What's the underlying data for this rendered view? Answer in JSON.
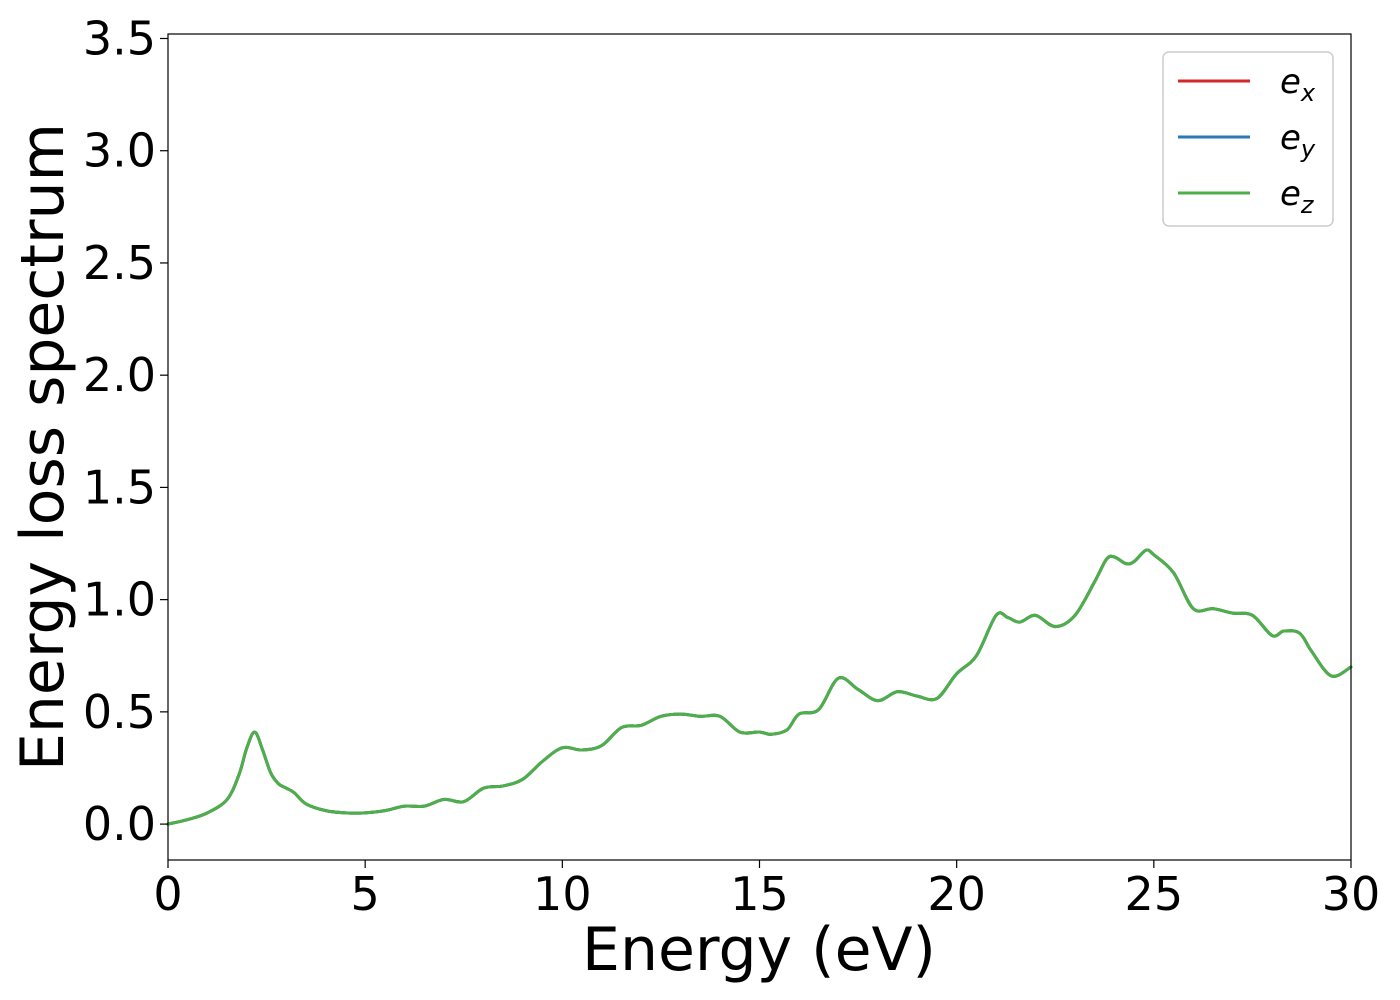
{
  "chart_data": {
    "type": "line",
    "title": "",
    "xlabel": "Energy (eV)",
    "ylabel": "Energy loss spectrum",
    "xlim": [
      0,
      30
    ],
    "ylim": [
      -0.16,
      3.52
    ],
    "xticks": [
      0,
      5,
      10,
      15,
      20,
      25,
      30
    ],
    "yticks": [
      0.0,
      0.5,
      1.0,
      1.5,
      2.0,
      2.5,
      3.0,
      3.5
    ],
    "xtick_labels": [
      "0",
      "5",
      "10",
      "15",
      "20",
      "25",
      "30"
    ],
    "ytick_labels": [
      "0.0",
      "0.5",
      "1.0",
      "1.5",
      "2.0",
      "2.5",
      "3.0",
      "3.5"
    ],
    "grid": false,
    "legend_position": "top-right",
    "x": [
      0,
      0.5,
      1.0,
      1.5,
      1.8,
      2.0,
      2.2,
      2.4,
      2.6,
      2.8,
      3.0,
      3.2,
      3.5,
      4.0,
      4.5,
      5.0,
      5.5,
      6.0,
      6.5,
      7.0,
      7.5,
      8.0,
      8.5,
      9.0,
      9.5,
      10.0,
      10.5,
      11.0,
      11.5,
      12.0,
      12.5,
      13.0,
      13.5,
      14.0,
      14.5,
      15.0,
      15.3,
      15.7,
      16.0,
      16.5,
      17.0,
      17.5,
      18.0,
      18.5,
      19.0,
      19.5,
      20.0,
      20.5,
      21.0,
      21.3,
      21.6,
      22.0,
      22.5,
      23.0,
      23.5,
      23.8,
      24.0,
      24.3,
      24.5,
      24.8,
      25.0,
      25.5,
      26.0,
      26.5,
      27.0,
      27.5,
      28.0,
      28.3,
      28.7,
      29.0,
      29.5,
      30.0
    ],
    "series": [
      {
        "name": "e_x",
        "sub": "x",
        "color": "#d62728",
        "values": [
          0.0,
          0.02,
          0.05,
          0.11,
          0.22,
          0.34,
          0.41,
          0.33,
          0.23,
          0.18,
          0.16,
          0.14,
          0.09,
          0.06,
          0.05,
          0.05,
          0.06,
          0.08,
          0.08,
          0.11,
          0.1,
          0.16,
          0.17,
          0.2,
          0.28,
          0.34,
          0.33,
          0.35,
          0.43,
          0.44,
          0.48,
          0.49,
          0.48,
          0.48,
          0.41,
          0.41,
          0.4,
          0.42,
          0.49,
          0.51,
          0.65,
          0.6,
          0.55,
          0.59,
          0.57,
          0.56,
          0.67,
          0.75,
          0.93,
          0.92,
          0.9,
          0.93,
          0.88,
          0.93,
          1.08,
          1.18,
          1.19,
          1.16,
          1.17,
          1.22,
          1.2,
          1.12,
          0.96,
          0.96,
          0.94,
          0.93,
          0.84,
          0.86,
          0.85,
          0.77,
          0.66,
          0.7
        ]
      },
      {
        "name": "e_y",
        "sub": "y",
        "color": "#2a7ab5",
        "values": [
          0.0,
          0.02,
          0.05,
          0.11,
          0.22,
          0.34,
          0.41,
          0.33,
          0.23,
          0.18,
          0.16,
          0.14,
          0.09,
          0.06,
          0.05,
          0.05,
          0.06,
          0.08,
          0.08,
          0.11,
          0.1,
          0.16,
          0.17,
          0.2,
          0.28,
          0.34,
          0.33,
          0.35,
          0.43,
          0.44,
          0.48,
          0.49,
          0.48,
          0.48,
          0.41,
          0.41,
          0.4,
          0.42,
          0.49,
          0.51,
          0.65,
          0.6,
          0.55,
          0.59,
          0.57,
          0.56,
          0.67,
          0.75,
          0.93,
          0.92,
          0.9,
          0.93,
          0.88,
          0.93,
          1.08,
          1.18,
          1.19,
          1.16,
          1.17,
          1.22,
          1.2,
          1.12,
          0.96,
          0.96,
          0.94,
          0.93,
          0.84,
          0.86,
          0.85,
          0.77,
          0.66,
          0.7
        ]
      },
      {
        "name": "e_z",
        "sub": "z",
        "color": "#4daf4a",
        "values": [
          0.0,
          0.02,
          0.05,
          0.11,
          0.22,
          0.34,
          0.41,
          0.33,
          0.23,
          0.18,
          0.16,
          0.14,
          0.09,
          0.06,
          0.05,
          0.05,
          0.06,
          0.08,
          0.08,
          0.11,
          0.1,
          0.16,
          0.17,
          0.2,
          0.28,
          0.34,
          0.33,
          0.35,
          0.43,
          0.44,
          0.48,
          0.49,
          0.48,
          0.48,
          0.41,
          0.41,
          0.4,
          0.42,
          0.49,
          0.51,
          0.65,
          0.6,
          0.55,
          0.59,
          0.57,
          0.56,
          0.67,
          0.75,
          0.93,
          0.92,
          0.9,
          0.93,
          0.88,
          0.93,
          1.08,
          1.18,
          1.19,
          1.16,
          1.17,
          1.22,
          1.2,
          1.12,
          0.96,
          0.96,
          0.94,
          0.93,
          0.84,
          0.86,
          0.85,
          0.77,
          0.66,
          0.7
        ]
      }
    ]
  }
}
